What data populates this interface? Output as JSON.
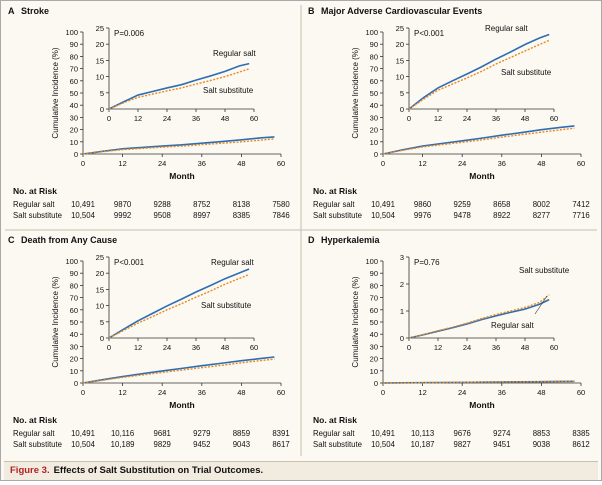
{
  "figure": {
    "caption_label": "Figure 3.",
    "caption_text": "Effects of Salt Substitution on Trial Outcomes.",
    "series_colors": {
      "Regular salt": "#2e6db4",
      "Salt substitute": "#e8891c"
    }
  },
  "chart_data": [
    {
      "panel": "A",
      "title": "Stroke",
      "type": "line",
      "xlabel": "Month",
      "ylabel": "Cumulative Incidence (%)",
      "x_ticks": [
        0,
        12,
        24,
        36,
        48,
        60
      ],
      "y_ticks": [
        0,
        10,
        20,
        30,
        40,
        50,
        60,
        70,
        80,
        90,
        100
      ],
      "ylim": [
        0,
        100
      ],
      "inset": {
        "ylim": [
          0,
          25
        ],
        "y_ticks": [
          0,
          5,
          10,
          15,
          20,
          25
        ],
        "x_ticks": [
          0,
          12,
          24,
          36,
          48,
          60
        ],
        "pvalue": "P=0.006"
      },
      "series": [
        {
          "name": "Regular salt",
          "x": [
            0,
            6,
            12,
            18,
            24,
            30,
            36,
            42,
            48,
            54,
            58
          ],
          "y": [
            0,
            2.2,
            4.3,
            5.4,
            6.5,
            7.5,
            8.9,
            10.2,
            11.6,
            13.3,
            14.0
          ]
        },
        {
          "name": "Salt substitute",
          "x": [
            0,
            6,
            12,
            18,
            24,
            30,
            36,
            42,
            48,
            54,
            58
          ],
          "y": [
            0,
            1.9,
            3.6,
            4.6,
            5.6,
            6.5,
            7.7,
            8.8,
            10.0,
            11.4,
            12.4
          ]
        }
      ],
      "inset_labels": [
        "Regular salt",
        "Salt substitute"
      ],
      "risk_table": {
        "title": "No. at Risk",
        "rows": [
          {
            "label": "Regular salt",
            "values": [
              "10,491",
              "9870",
              "9288",
              "8752",
              "8138",
              "7580"
            ]
          },
          {
            "label": "Salt substitute",
            "values": [
              "10,504",
              "9992",
              "9508",
              "8997",
              "8385",
              "7846"
            ]
          }
        ]
      }
    },
    {
      "panel": "B",
      "title": "Major Adverse Cardiovascular Events",
      "type": "line",
      "xlabel": "Month",
      "ylabel": "Cumulative Incidence (%)",
      "x_ticks": [
        0,
        12,
        24,
        36,
        48,
        60
      ],
      "y_ticks": [
        0,
        10,
        20,
        30,
        40,
        50,
        60,
        70,
        80,
        90,
        100
      ],
      "ylim": [
        0,
        100
      ],
      "inset": {
        "ylim": [
          0,
          25
        ],
        "y_ticks": [
          0,
          5,
          10,
          15,
          20,
          25
        ],
        "x_ticks": [
          0,
          12,
          24,
          36,
          48,
          60
        ],
        "pvalue": "P<0.001"
      },
      "series": [
        {
          "name": "Regular salt",
          "x": [
            0,
            6,
            12,
            18,
            24,
            30,
            36,
            42,
            48,
            54,
            58
          ],
          "y": [
            0,
            3.5,
            6.5,
            8.7,
            10.8,
            13.0,
            15.4,
            17.6,
            19.9,
            21.9,
            23.0
          ]
        },
        {
          "name": "Salt substitute",
          "x": [
            0,
            6,
            12,
            18,
            24,
            30,
            36,
            42,
            48,
            54,
            58
          ],
          "y": [
            0,
            3.0,
            5.8,
            7.7,
            9.6,
            11.6,
            13.9,
            15.9,
            17.9,
            19.9,
            21.2
          ]
        }
      ],
      "inset_labels": [
        "Regular salt",
        "Salt substitute"
      ],
      "risk_table": {
        "title": "No. at Risk",
        "rows": [
          {
            "label": "Regular salt",
            "values": [
              "10,491",
              "9860",
              "9259",
              "8658",
              "8002",
              "7412"
            ]
          },
          {
            "label": "Salt substitute",
            "values": [
              "10,504",
              "9976",
              "9478",
              "8922",
              "8277",
              "7716"
            ]
          }
        ]
      }
    },
    {
      "panel": "C",
      "title": "Death from Any Cause",
      "type": "line",
      "xlabel": "Month",
      "ylabel": "Cumulative Incidence (%)",
      "x_ticks": [
        0,
        12,
        24,
        36,
        48,
        60
      ],
      "y_ticks": [
        0,
        10,
        20,
        30,
        40,
        50,
        60,
        70,
        80,
        90,
        100
      ],
      "ylim": [
        0,
        100
      ],
      "inset": {
        "ylim": [
          0,
          25
        ],
        "y_ticks": [
          0,
          5,
          10,
          15,
          20,
          25
        ],
        "x_ticks": [
          0,
          12,
          24,
          36,
          48,
          60
        ],
        "pvalue": "P<0.001"
      },
      "series": [
        {
          "name": "Regular salt",
          "x": [
            0,
            6,
            12,
            18,
            24,
            30,
            36,
            42,
            48,
            54,
            58
          ],
          "y": [
            0,
            2.7,
            5.3,
            7.6,
            9.9,
            12.0,
            14.2,
            16.2,
            18.3,
            20.1,
            21.3
          ]
        },
        {
          "name": "Salt substitute",
          "x": [
            0,
            6,
            12,
            18,
            24,
            30,
            36,
            42,
            48,
            54,
            58
          ],
          "y": [
            0,
            2.3,
            4.6,
            6.6,
            8.7,
            10.6,
            12.6,
            14.5,
            16.6,
            18.4,
            19.6
          ]
        }
      ],
      "inset_labels": [
        "Regular salt",
        "Salt substitute"
      ],
      "risk_table": {
        "title": "No. at Risk",
        "rows": [
          {
            "label": "Regular salt",
            "values": [
              "10,491",
              "10,116",
              "9681",
              "9279",
              "8859",
              "8391"
            ]
          },
          {
            "label": "Salt substitute",
            "values": [
              "10,504",
              "10,189",
              "9829",
              "9452",
              "9043",
              "8617"
            ]
          }
        ]
      }
    },
    {
      "panel": "D",
      "title": "Hyperkalemia",
      "type": "line",
      "xlabel": "Month",
      "ylabel": "Cumulative Incidence (%)",
      "x_ticks": [
        0,
        12,
        24,
        36,
        48,
        60
      ],
      "y_ticks": [
        0,
        10,
        20,
        30,
        40,
        50,
        60,
        70,
        80,
        90,
        100
      ],
      "ylim": [
        0,
        100
      ],
      "inset": {
        "ylim": [
          0,
          3
        ],
        "y_ticks": [
          0,
          1,
          2,
          3
        ],
        "x_ticks": [
          0,
          12,
          24,
          36,
          48,
          60
        ],
        "pvalue": "P=0.76"
      },
      "series": [
        {
          "name": "Regular salt",
          "x": [
            0,
            6,
            12,
            18,
            24,
            30,
            36,
            42,
            48,
            54,
            58
          ],
          "y": [
            0,
            0.12,
            0.25,
            0.38,
            0.52,
            0.68,
            0.82,
            0.95,
            1.07,
            1.25,
            1.42
          ]
        },
        {
          "name": "Salt substitute",
          "x": [
            0,
            6,
            12,
            18,
            24,
            30,
            36,
            42,
            48,
            54,
            58
          ],
          "y": [
            0,
            0.13,
            0.27,
            0.4,
            0.55,
            0.72,
            0.87,
            1.0,
            1.13,
            1.32,
            1.6
          ]
        }
      ],
      "inset_labels": [
        "Salt substitute",
        "Regular salt"
      ],
      "risk_table": {
        "title": "No. at Risk",
        "rows": [
          {
            "label": "Regular salt",
            "values": [
              "10,491",
              "10,113",
              "9676",
              "9274",
              "8853",
              "8385"
            ]
          },
          {
            "label": "Salt substitute",
            "values": [
              "10,504",
              "10,187",
              "9827",
              "9451",
              "9038",
              "8612"
            ]
          }
        ]
      }
    }
  ]
}
